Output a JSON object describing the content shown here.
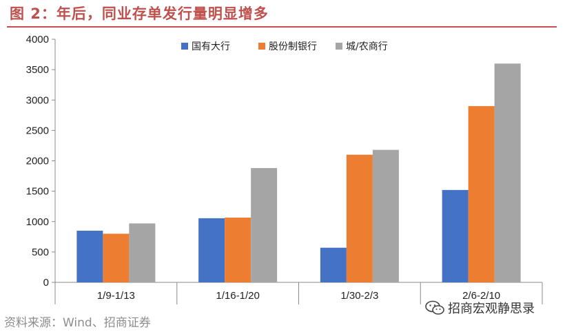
{
  "figure": {
    "title": "图 2：年后，同业存单发行量明显增多",
    "source": "资料来源：Wind、招商证券",
    "watermark": "招商宏观静思录"
  },
  "chart_data": {
    "type": "bar",
    "categories": [
      "1/9-1/13",
      "1/16-1/20",
      "1/30-2/3",
      "2/6-2/10"
    ],
    "series": [
      {
        "name": "国有大行",
        "color": "#4472c4",
        "values": [
          850,
          1055,
          570,
          1520
        ]
      },
      {
        "name": "股份制银行",
        "color": "#ed7d31",
        "values": [
          800,
          1065,
          2100,
          2900
        ]
      },
      {
        "name": "城/农商行",
        "color": "#a5a5a5",
        "values": [
          970,
          1880,
          2180,
          3600
        ]
      }
    ],
    "ylim": [
      0,
      4000
    ],
    "yticks": [
      0,
      500,
      1000,
      1500,
      2000,
      2500,
      3000,
      3500,
      4000
    ],
    "legend_position": "top",
    "grid": false
  }
}
